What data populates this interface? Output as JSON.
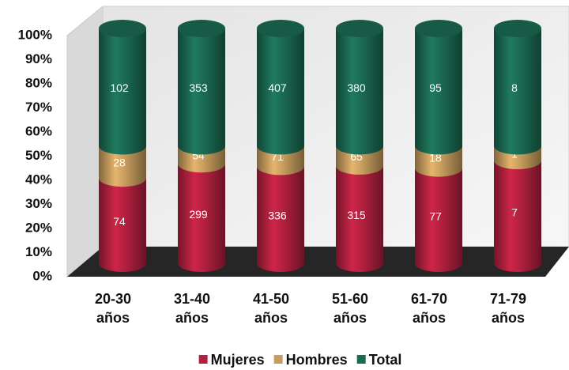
{
  "chart_data": {
    "type": "stacked_cylinder_100",
    "categories": [
      "20-30 años",
      "31-40 años",
      "41-50 años",
      "51-60 años",
      "61-70 años",
      "71-79 años"
    ],
    "series": [
      {
        "name": "Mujeres",
        "color": "#b3203f",
        "values": [
          74,
          299,
          336,
          315,
          77,
          7
        ]
      },
      {
        "name": "Hombres",
        "color": "#c79d5e",
        "values": [
          28,
          54,
          71,
          65,
          18,
          1
        ]
      },
      {
        "name": "Total",
        "color": "#1b6a52",
        "values": [
          102,
          353,
          407,
          380,
          95,
          8
        ]
      }
    ],
    "ylim": [
      0,
      100
    ],
    "yticks": [
      {
        "value": 0,
        "label": "0%"
      },
      {
        "value": 10,
        "label": "10%"
      },
      {
        "value": 20,
        "label": "20%"
      },
      {
        "value": 30,
        "label": "30%"
      },
      {
        "value": 40,
        "label": "40%"
      },
      {
        "value": 50,
        "label": "50%"
      },
      {
        "value": 60,
        "label": "60%"
      },
      {
        "value": 70,
        "label": "70%"
      },
      {
        "value": 80,
        "label": "80%"
      },
      {
        "value": 90,
        "label": "90%"
      },
      {
        "value": 100,
        "label": "100%"
      }
    ],
    "grid": false,
    "legend": "bottom"
  }
}
